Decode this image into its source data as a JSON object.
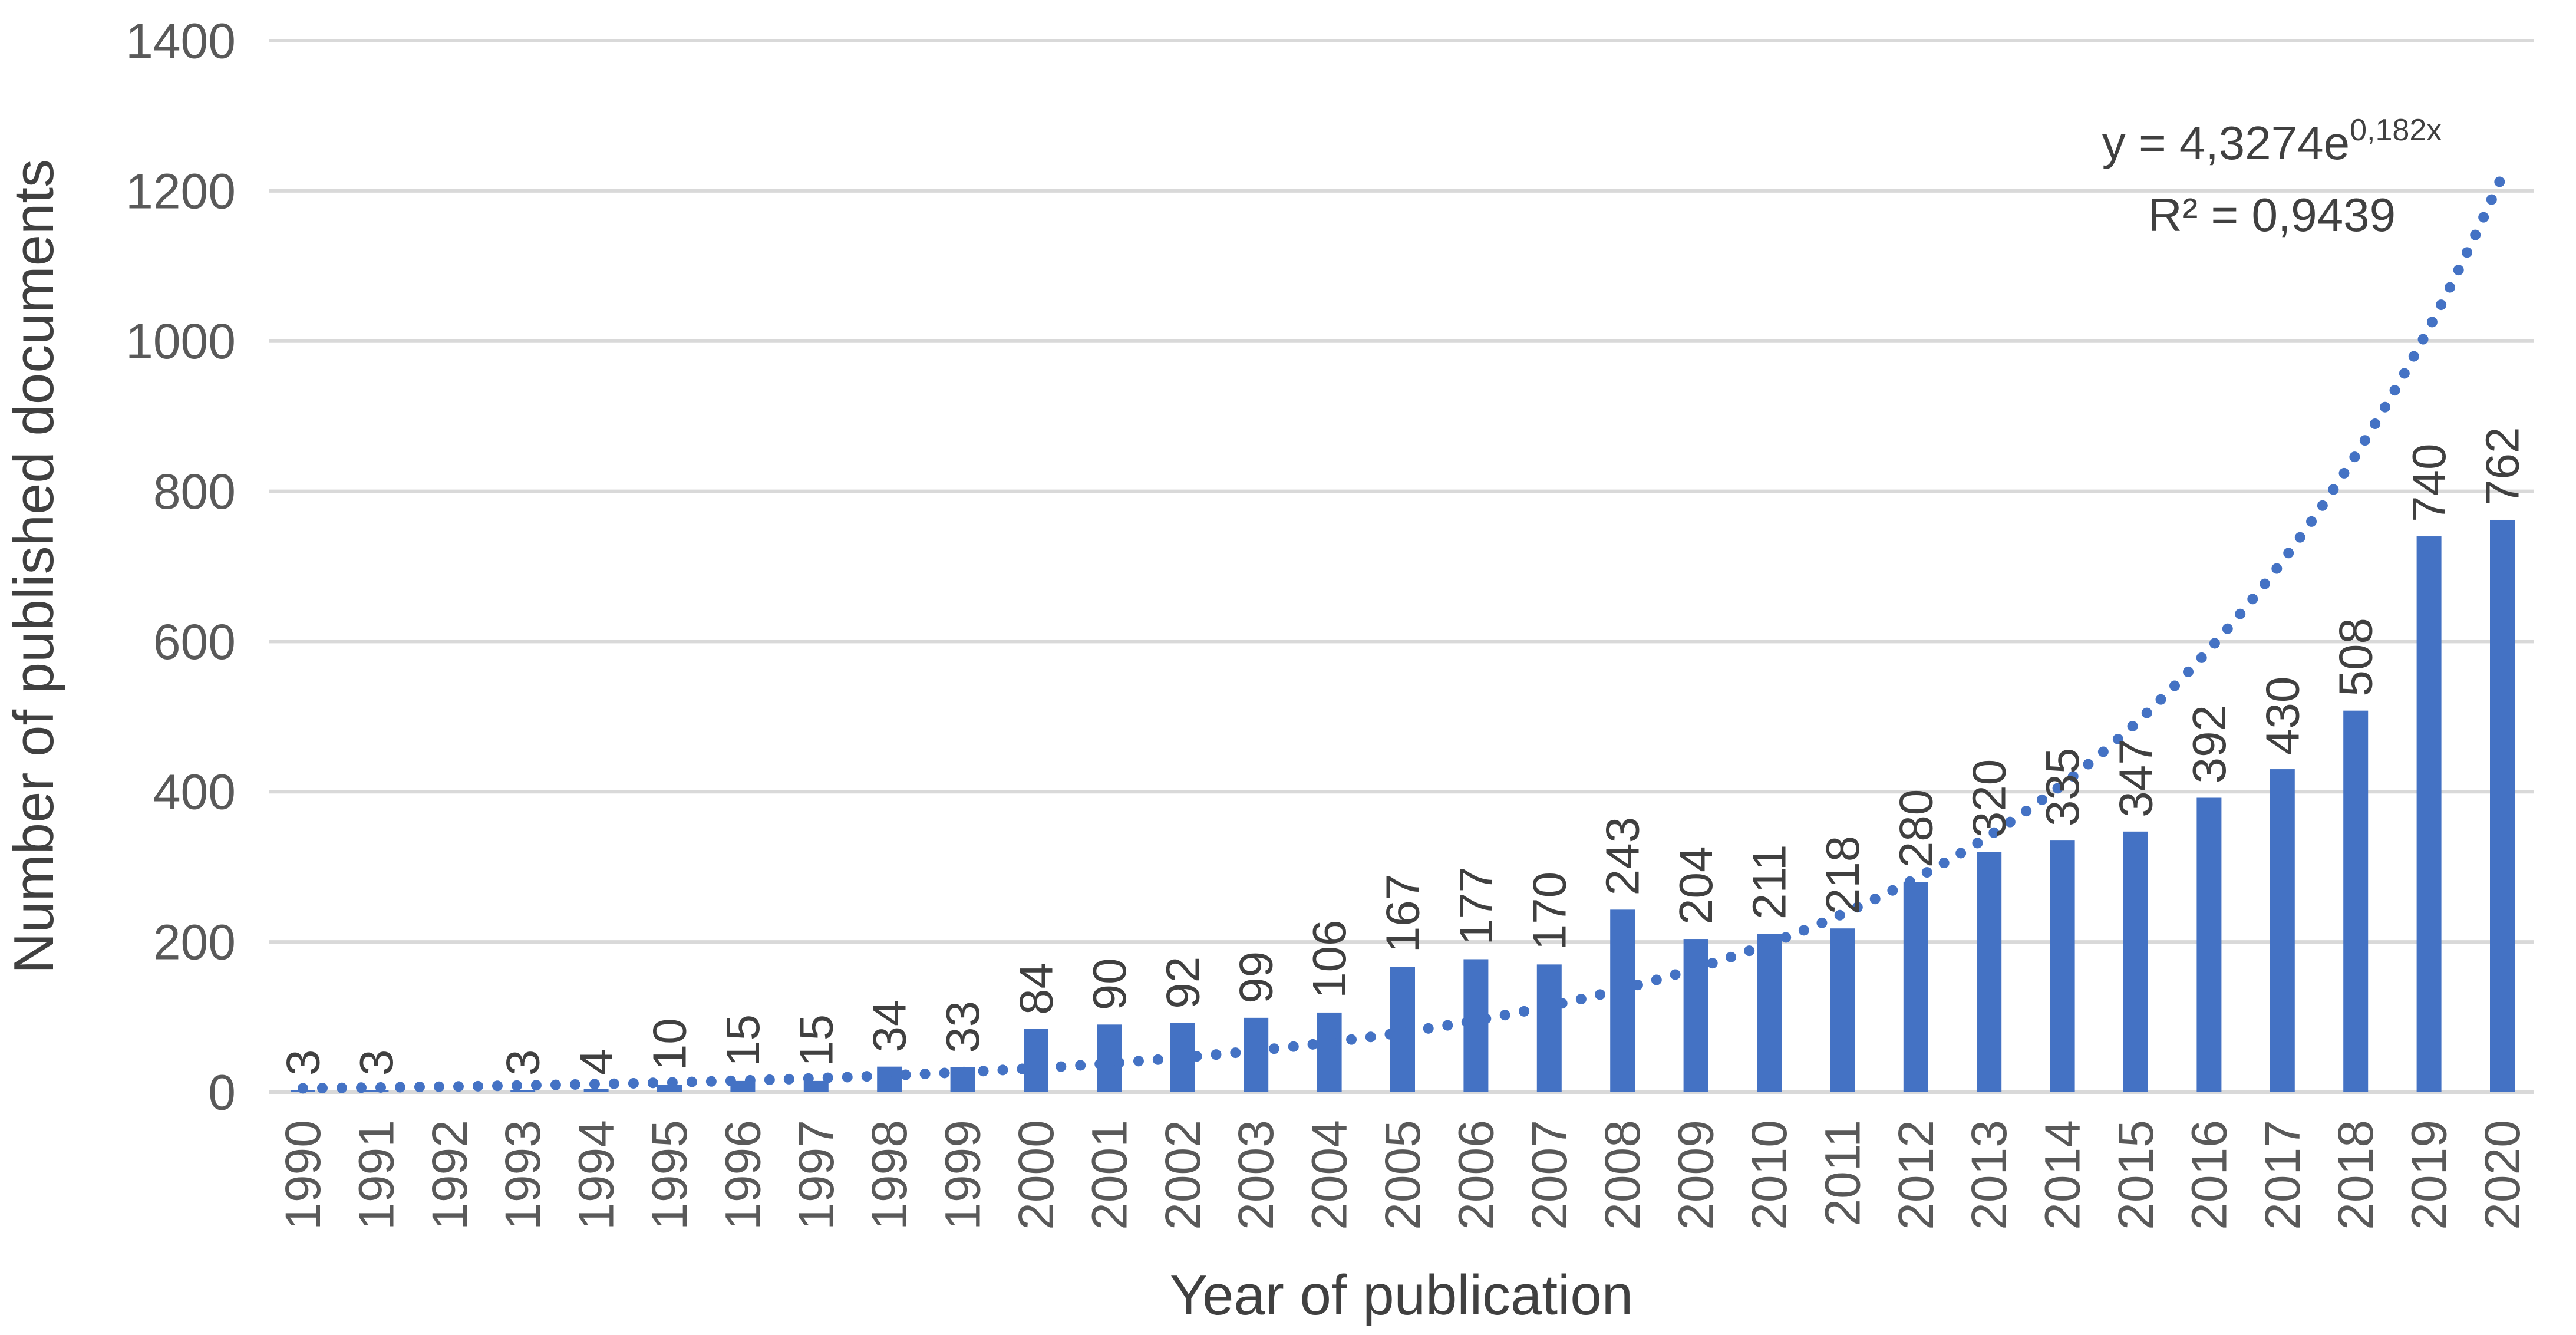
{
  "chart_data": {
    "type": "bar",
    "title": "",
    "xlabel": "Year of publication",
    "ylabel": "Number of published documents",
    "categories": [
      "1990",
      "1991",
      "1992",
      "1993",
      "1994",
      "1995",
      "1996",
      "1997",
      "1998",
      "1999",
      "2000",
      "2001",
      "2002",
      "2003",
      "2004",
      "2005",
      "2006",
      "2007",
      "2008",
      "2009",
      "2010",
      "2011",
      "2012",
      "2013",
      "2014",
      "2015",
      "2016",
      "2017",
      "2018",
      "2019",
      "2020"
    ],
    "values": [
      3,
      3,
      0,
      3,
      4,
      10,
      15,
      15,
      34,
      33,
      84,
      90,
      92,
      99,
      106,
      167,
      177,
      170,
      243,
      204,
      211,
      218,
      280,
      320,
      335,
      347,
      392,
      430,
      508,
      740,
      762
    ],
    "bar_labels": [
      "3",
      "3",
      "",
      "3",
      "4",
      "10",
      "15",
      "15",
      "34",
      "33",
      "84",
      "90",
      "92",
      "99",
      "106",
      "167",
      "177",
      "170",
      "243",
      "204",
      "211",
      "218",
      "280",
      "320",
      "335",
      "347",
      "392",
      "430",
      "508",
      "740",
      "762"
    ],
    "ylim": [
      0,
      1400
    ],
    "yticks": [
      0,
      200,
      400,
      600,
      800,
      1000,
      1200,
      1400
    ],
    "grid": true,
    "legend": "none",
    "bar_color": "#4472C4",
    "grid_color": "#D9D9D9",
    "tick_text_color": "#595959",
    "label_text_color": "#404040",
    "trendline": {
      "type": "exponential",
      "style": "dotted",
      "color": "#4472C4",
      "a": 4.3274,
      "b": 0.182,
      "equation_base": "y = 4,3274e",
      "equation_exponent": "0,182x",
      "r_squared_label": "R² = 0,9439"
    }
  }
}
